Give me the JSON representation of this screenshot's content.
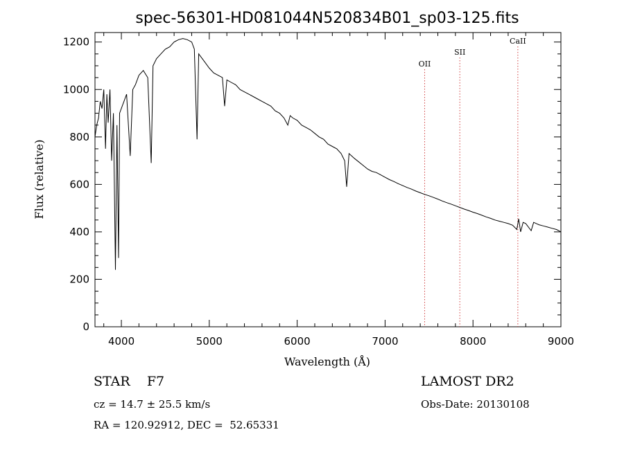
{
  "chart_data": {
    "type": "line",
    "title": "spec-56301-HD081044N520834B01_sp03-125.fits",
    "xlabel": "Wavelength (Å)",
    "ylabel": "Flux (relative)",
    "xlim": [
      3700,
      9000
    ],
    "ylim": [
      0,
      1240
    ],
    "xticks": [
      "4000",
      "5000",
      "6000",
      "7000",
      "8000",
      "9000"
    ],
    "yticks": [
      "0",
      "200",
      "400",
      "600",
      "800",
      "1000",
      "1200"
    ],
    "xtick_values": [
      4000,
      5000,
      6000,
      7000,
      8000,
      9000
    ],
    "ytick_values": [
      0,
      200,
      400,
      600,
      800,
      1000,
      1200
    ],
    "spectral_lines": [
      {
        "label": "OII",
        "wavelength": 7450
      },
      {
        "label": "SII",
        "wavelength": 7850
      },
      {
        "label": "CaII",
        "wavelength": 8510
      }
    ],
    "series": [
      {
        "x": [
          3700,
          3720,
          3740,
          3760,
          3780,
          3800,
          3820,
          3835,
          3850,
          3870,
          3889,
          3910,
          3933,
          3950,
          3968,
          3980,
          4000,
          4030,
          4060,
          4101,
          4130,
          4160,
          4200,
          4250,
          4300,
          4340,
          4360,
          4400,
          4450,
          4500,
          4550,
          4600,
          4650,
          4700,
          4750,
          4800,
          4830,
          4861,
          4880,
          4920,
          4960,
          5000,
          5050,
          5100,
          5150,
          5175,
          5200,
          5250,
          5300,
          5350,
          5400,
          5450,
          5500,
          5550,
          5600,
          5650,
          5700,
          5750,
          5800,
          5850,
          5893,
          5920,
          5950,
          6000,
          6050,
          6100,
          6150,
          6200,
          6250,
          6300,
          6350,
          6400,
          6450,
          6500,
          6540,
          6563,
          6590,
          6620,
          6650,
          6700,
          6750,
          6800,
          6850,
          6900,
          6950,
          7000,
          7050,
          7100,
          7150,
          7200,
          7250,
          7300,
          7350,
          7400,
          7450,
          7500,
          7550,
          7600,
          7650,
          7700,
          7750,
          7800,
          7850,
          7900,
          7950,
          8000,
          8050,
          8100,
          8150,
          8200,
          8250,
          8300,
          8350,
          8400,
          8450,
          8498,
          8520,
          8542,
          8570,
          8600,
          8662,
          8690,
          8720,
          8750,
          8800,
          8850,
          8900,
          8950,
          9000
        ],
        "values": [
          800,
          850,
          880,
          950,
          920,
          1000,
          750,
          980,
          860,
          1000,
          700,
          900,
          240,
          850,
          290,
          900,
          920,
          950,
          980,
          720,
          1000,
          1020,
          1060,
          1080,
          1050,
          690,
          1100,
          1130,
          1150,
          1170,
          1180,
          1200,
          1210,
          1215,
          1210,
          1200,
          1170,
          790,
          1150,
          1130,
          1110,
          1090,
          1070,
          1060,
          1050,
          930,
          1040,
          1030,
          1020,
          1000,
          990,
          980,
          970,
          960,
          950,
          940,
          930,
          910,
          900,
          880,
          850,
          890,
          880,
          870,
          850,
          840,
          830,
          815,
          800,
          790,
          770,
          760,
          750,
          730,
          700,
          590,
          730,
          720,
          710,
          695,
          680,
          665,
          655,
          650,
          640,
          630,
          620,
          612,
          603,
          595,
          587,
          580,
          572,
          565,
          558,
          552,
          545,
          538,
          530,
          523,
          517,
          510,
          503,
          496,
          490,
          483,
          477,
          470,
          463,
          457,
          450,
          445,
          440,
          435,
          428,
          410,
          455,
          400,
          440,
          435,
          405,
          440,
          435,
          430,
          425,
          420,
          415,
          410,
          400
        ]
      }
    ]
  },
  "info": {
    "object_class": "STAR",
    "subclass": "F7",
    "redshift": "cz = 14.7 ± 25.5 km/s",
    "coords": "RA = 120.92912, DEC =  52.65331",
    "survey": "LAMOST DR2",
    "obs_date": "Obs-Date: 20130108"
  }
}
